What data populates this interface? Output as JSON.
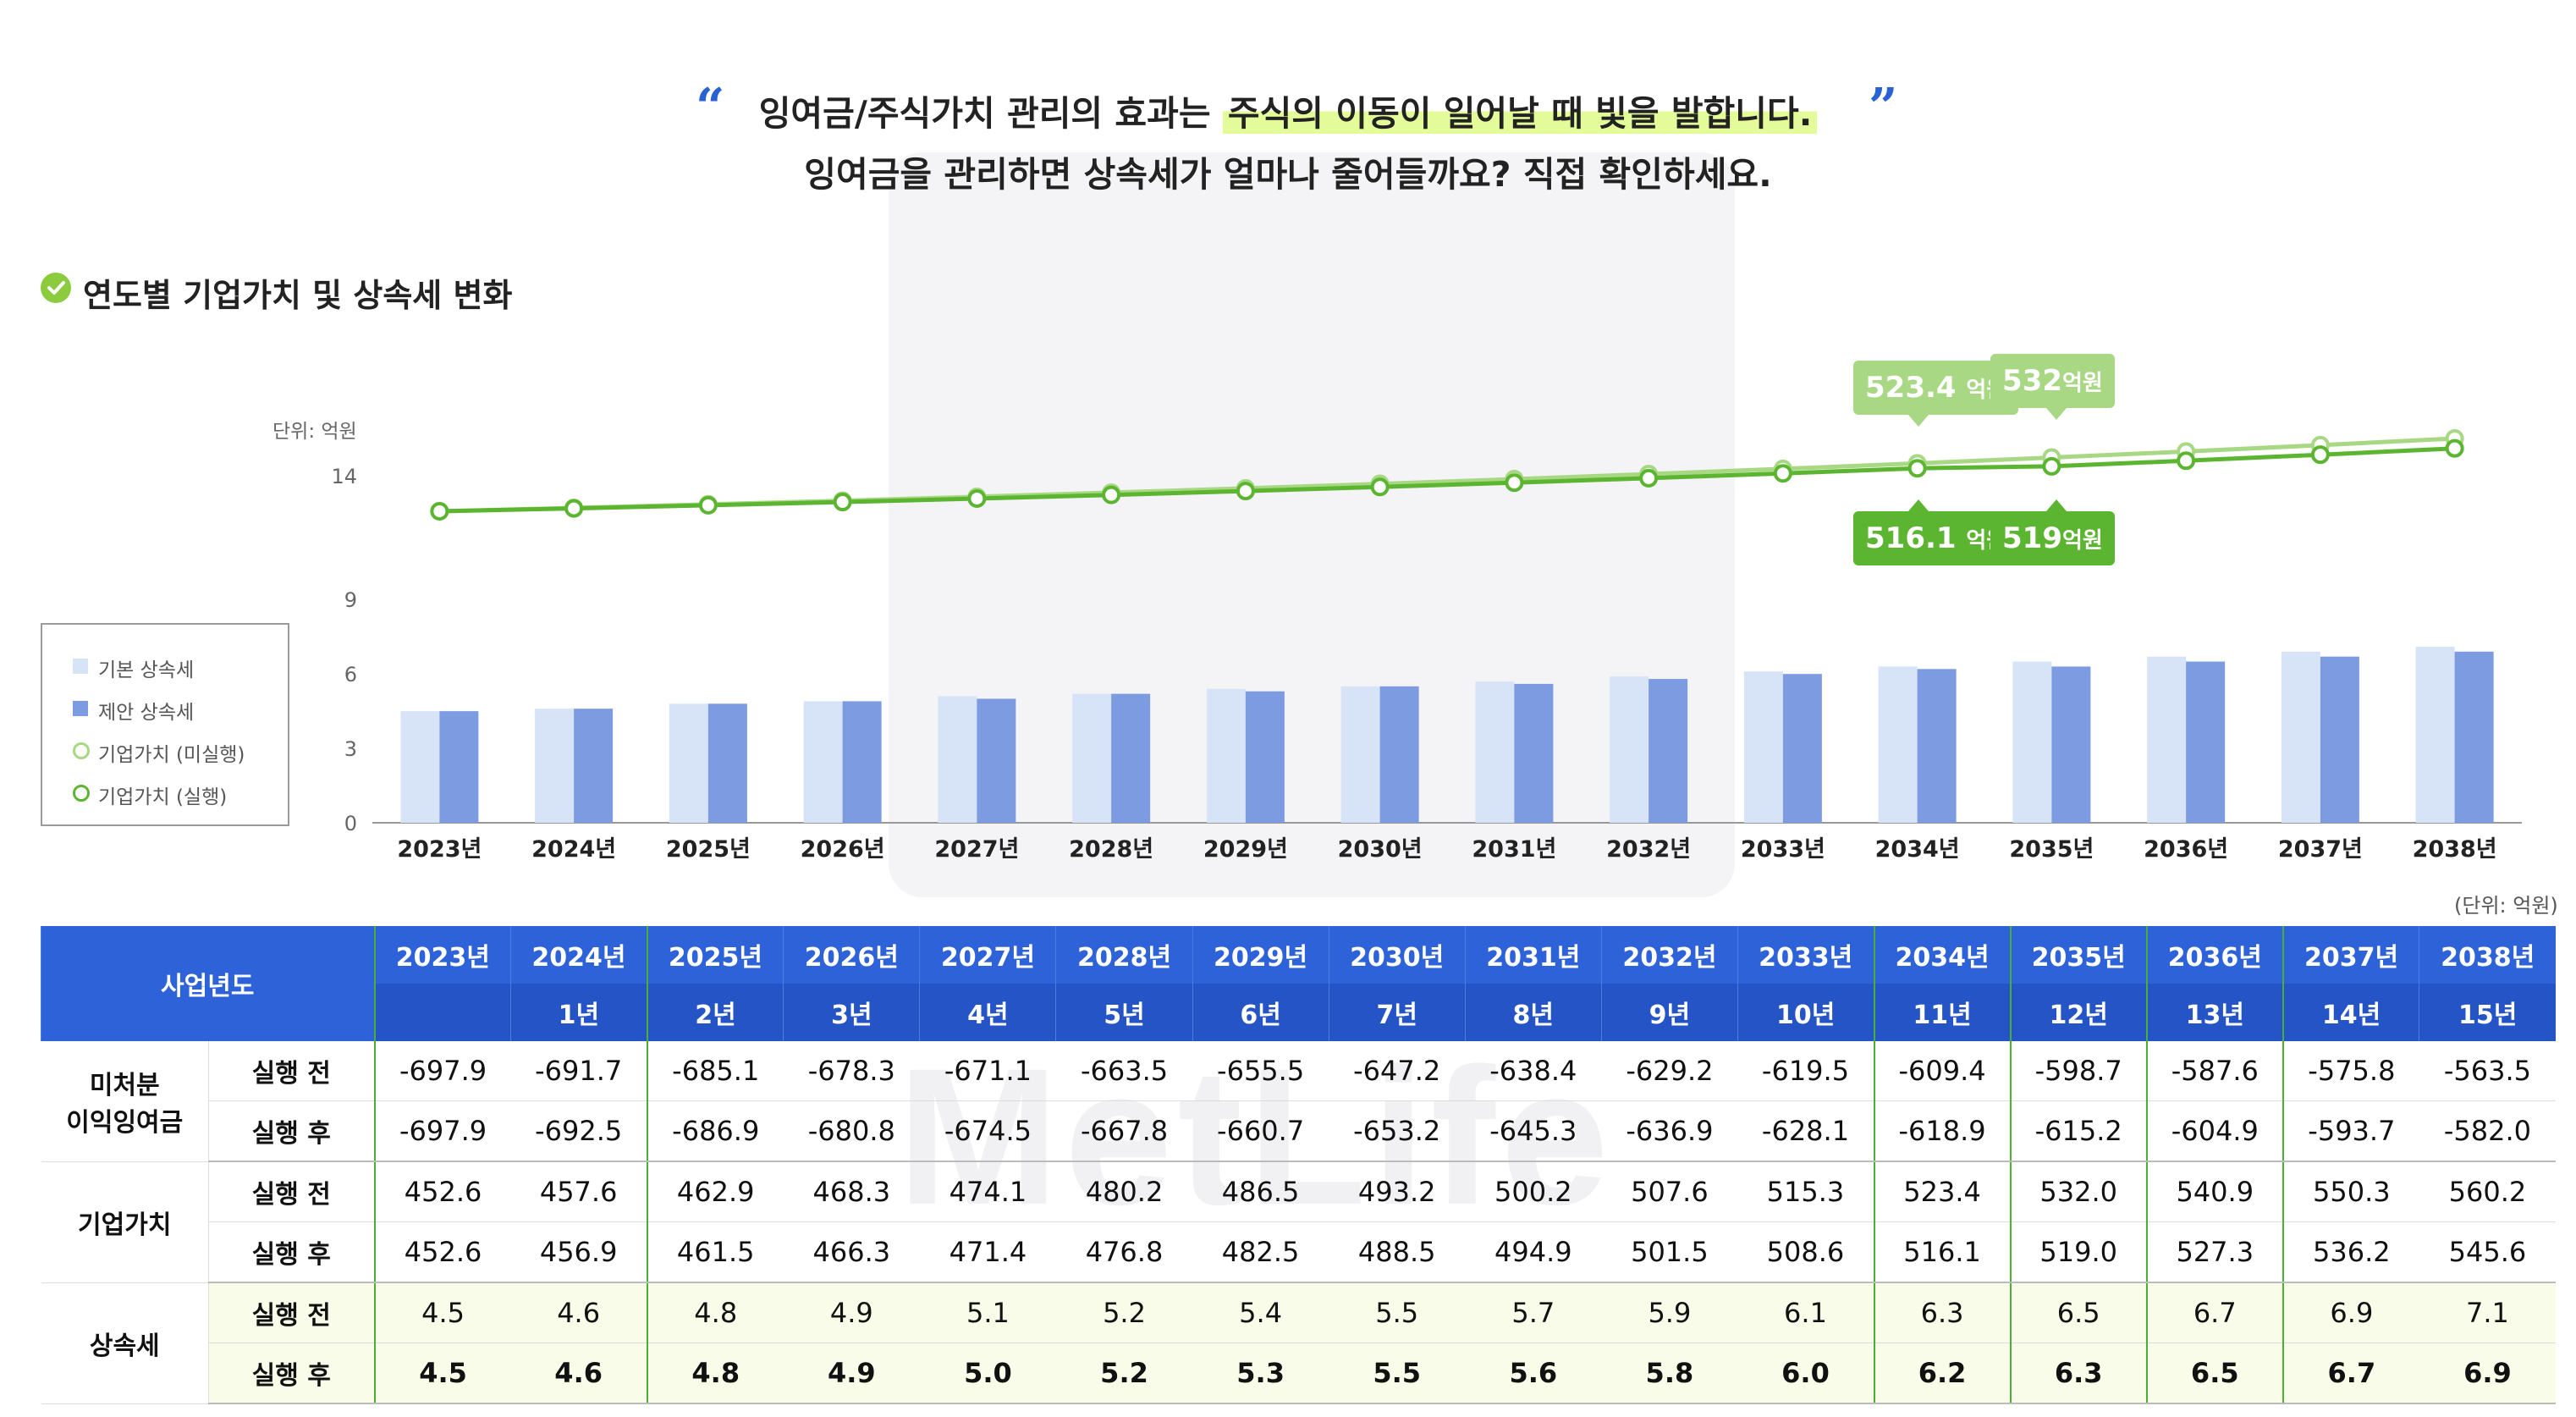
{
  "header": {
    "line1_pre": "잉여금/주식가치 관리의 효과는 ",
    "line1_highlight": "주식의 이동이 일어날 때 빛을 발합니다.",
    "line2": "잉여금을 관리하면 상속세가 얼마나 줄어들까요? 직접 확인하세요.",
    "open_quote": "“",
    "close_quote": "”"
  },
  "section": {
    "title": "연도별 기업가치 및 상속세 변화",
    "icon": "check-circle-icon"
  },
  "chart_unit": "단위: 억원",
  "table_unit": "(단위: 억원)",
  "legend": [
    {
      "label": "기본 상속세",
      "color": "#d7e3f7"
    },
    {
      "label": "제안 상속세",
      "color": "#7c9be0"
    },
    {
      "label": "기업가치 (미실행)",
      "color": "#a9d884"
    },
    {
      "label": "기업가치 (실행)",
      "color": "#5cb531"
    }
  ],
  "callouts": {
    "top": [
      {
        "num": "523.4",
        "unit": "억원"
      },
      {
        "num": "532",
        "unit": "억원"
      }
    ],
    "bottom": [
      {
        "num": "516.1",
        "unit": "억원"
      },
      {
        "num": "519",
        "unit": "억원"
      }
    ]
  },
  "chart_data": {
    "type": "bar+line",
    "categories": [
      "2023년",
      "2024년",
      "2025년",
      "2026년",
      "2027년",
      "2028년",
      "2029년",
      "2030년",
      "2031년",
      "2032년",
      "2033년",
      "2034년",
      "2035년",
      "2036년",
      "2037년",
      "2038년"
    ],
    "y_ticks": [
      "0",
      "3",
      "6",
      "9",
      "14"
    ],
    "ylabel": "단위: 억원",
    "bar_series": [
      {
        "name": "기본 상속세",
        "color": "#d7e3f7",
        "values": [
          4.5,
          4.6,
          4.8,
          4.9,
          5.1,
          5.2,
          5.4,
          5.5,
          5.7,
          5.9,
          6.1,
          6.3,
          6.5,
          6.7,
          6.9,
          7.1
        ]
      },
      {
        "name": "제안 상속세",
        "color": "#7c9be0",
        "values": [
          4.5,
          4.6,
          4.8,
          4.9,
          5.0,
          5.2,
          5.3,
          5.5,
          5.6,
          5.8,
          6.0,
          6.2,
          6.3,
          6.5,
          6.7,
          6.9
        ]
      }
    ],
    "line_series": [
      {
        "name": "기업가치 (미실행)",
        "color": "#a9d884",
        "values": [
          452.6,
          457.6,
          462.9,
          468.3,
          474.1,
          480.2,
          486.5,
          493.2,
          500.2,
          507.6,
          515.3,
          523.4,
          532.0,
          540.9,
          550.3,
          560.2
        ]
      },
      {
        "name": "기업가치 (실행)",
        "color": "#5cb531",
        "values": [
          452.6,
          456.9,
          461.5,
          466.3,
          471.4,
          476.8,
          482.5,
          488.5,
          494.9,
          501.5,
          508.6,
          516.1,
          519.0,
          527.3,
          536.2,
          545.6
        ]
      }
    ],
    "grid": false,
    "legend_position": "left"
  },
  "table": {
    "corner": "사업년도",
    "years": [
      "2023년",
      "2024년",
      "2025년",
      "2026년",
      "2027년",
      "2028년",
      "2029년",
      "2030년",
      "2031년",
      "2032년",
      "2033년",
      "2034년",
      "2035년",
      "2036년",
      "2037년",
      "2038년"
    ],
    "periods": [
      "",
      "1년",
      "2년",
      "3년",
      "4년",
      "5년",
      "6년",
      "7년",
      "8년",
      "9년",
      "10년",
      "11년",
      "12년",
      "13년",
      "14년",
      "15년"
    ],
    "groups": [
      {
        "name": "미처분\n이익잉여금",
        "rows": [
          {
            "label": "실행 전",
            "values": [
              "-697.9",
              "-691.7",
              "-685.1",
              "-678.3",
              "-671.1",
              "-663.5",
              "-655.5",
              "-647.2",
              "-638.4",
              "-629.2",
              "-619.5",
              "-609.4",
              "-598.7",
              "-587.6",
              "-575.8",
              "-563.5"
            ]
          },
          {
            "label": "실행 후",
            "values": [
              "-697.9",
              "-692.5",
              "-686.9",
              "-680.8",
              "-674.5",
              "-667.8",
              "-660.7",
              "-653.2",
              "-645.3",
              "-636.9",
              "-628.1",
              "-618.9",
              "-615.2",
              "-604.9",
              "-593.7",
              "-582.0"
            ]
          }
        ]
      },
      {
        "name": "기업가치",
        "rows": [
          {
            "label": "실행 전",
            "values": [
              "452.6",
              "457.6",
              "462.9",
              "468.3",
              "474.1",
              "480.2",
              "486.5",
              "493.2",
              "500.2",
              "507.6",
              "515.3",
              "523.4",
              "532.0",
              "540.9",
              "550.3",
              "560.2"
            ]
          },
          {
            "label": "실행 후",
            "values": [
              "452.6",
              "456.9",
              "461.5",
              "466.3",
              "471.4",
              "476.8",
              "482.5",
              "488.5",
              "494.9",
              "501.5",
              "508.6",
              "516.1",
              "519.0",
              "527.3",
              "536.2",
              "545.6"
            ]
          }
        ]
      },
      {
        "name": "상속세",
        "rows": [
          {
            "label": "실행 전",
            "values": [
              "4.5",
              "4.6",
              "4.8",
              "4.9",
              "5.1",
              "5.2",
              "5.4",
              "5.5",
              "5.7",
              "5.9",
              "6.1",
              "6.3",
              "6.5",
              "6.7",
              "6.9",
              "7.1"
            ]
          },
          {
            "label": "실행 후",
            "values": [
              "4.5",
              "4.6",
              "4.8",
              "4.9",
              "5.0",
              "5.2",
              "5.3",
              "5.5",
              "5.6",
              "5.8",
              "6.0",
              "6.2",
              "6.3",
              "6.5",
              "6.7",
              "6.9"
            ]
          }
        ]
      }
    ]
  }
}
